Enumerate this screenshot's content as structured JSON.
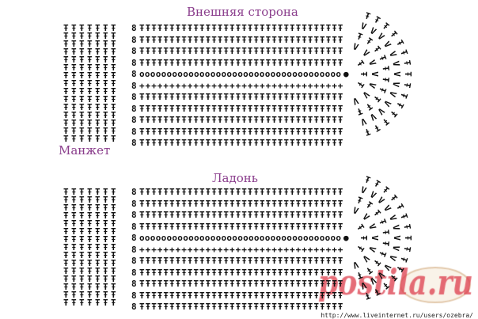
{
  "titles": {
    "outer": "Внешняя сторона",
    "cuff": "Манжет",
    "palm": "Ладонь"
  },
  "url": "http://www.liveinternet.ru/users/ozebra/",
  "watermark": "postila.ru",
  "colors": {
    "title": "#8a3d8c",
    "stitches": "#111111",
    "watermark": "#dc3c4b"
  },
  "symbols": {
    "dc": "Ŧ",
    "sc": "+",
    "chain": "o",
    "turning_chain": "8",
    "slip": "●",
    "increase": "V"
  },
  "diagrams": [
    {
      "name": "outer",
      "rows_above_chain": [
        "dc",
        "dc",
        "dc",
        "dc"
      ],
      "chain_row": "chain",
      "rows_below_chain": [
        "sc",
        "dc",
        "dc",
        "dc",
        "dc",
        "dc"
      ]
    },
    {
      "name": "palm",
      "rows_above_chain": [
        "dc",
        "dc",
        "dc",
        "dc"
      ],
      "chain_row": "chain",
      "rows_below_chain": [
        "sc",
        "dc",
        "dc",
        "dc",
        "dc",
        "dc"
      ]
    }
  ]
}
